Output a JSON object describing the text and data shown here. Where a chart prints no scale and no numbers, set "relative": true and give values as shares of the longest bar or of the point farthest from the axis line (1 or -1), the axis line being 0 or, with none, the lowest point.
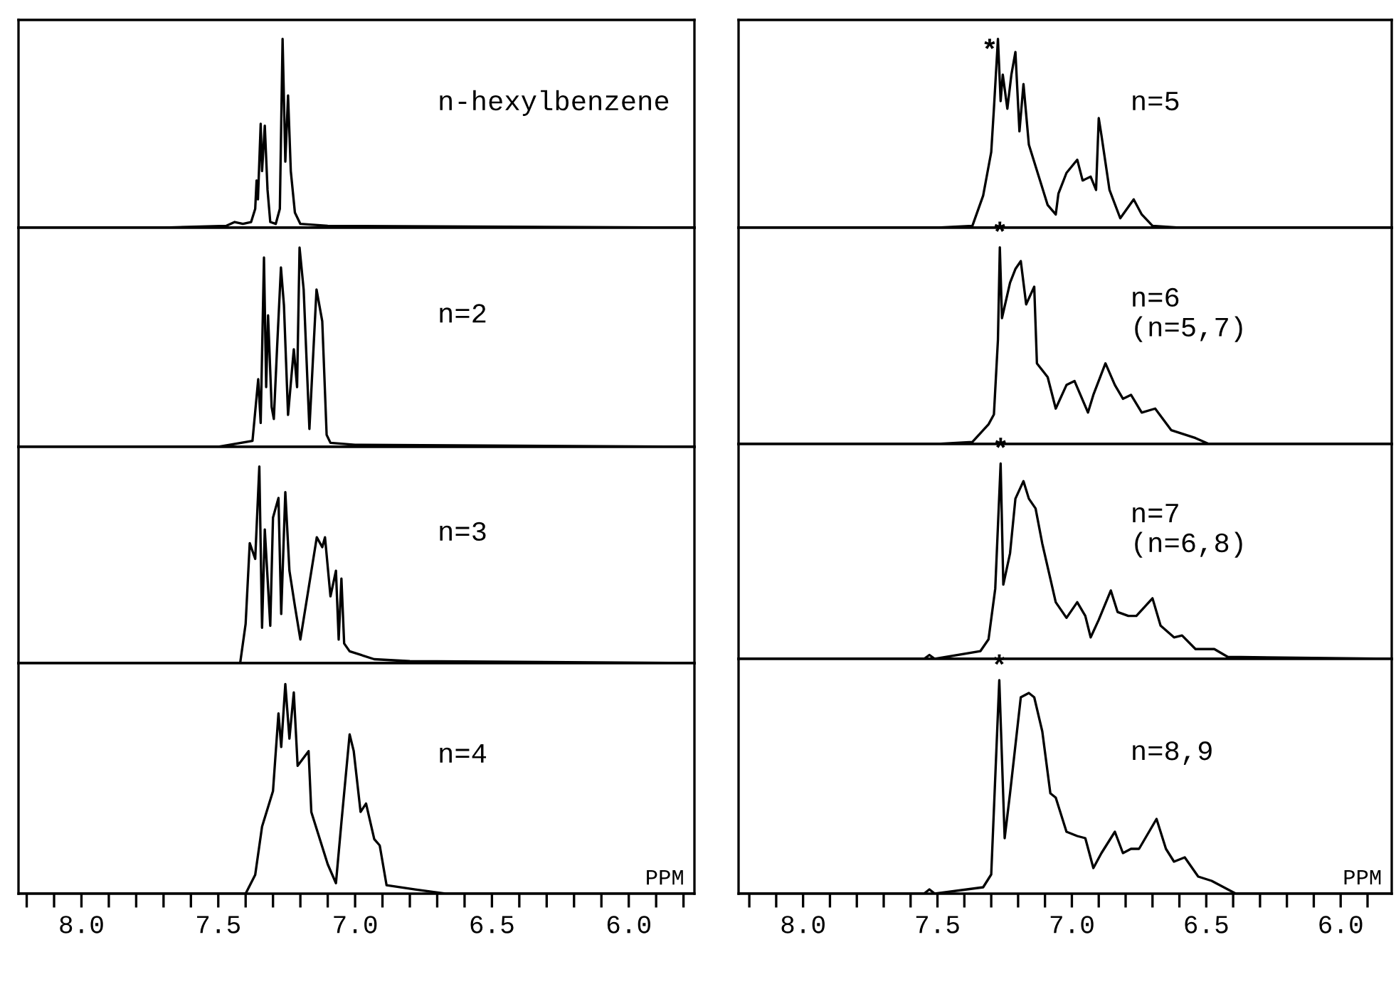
{
  "chart_data": [
    {
      "type": "line",
      "relative": true,
      "color": "#000000",
      "xlim": [
        8.23,
        5.76
      ],
      "tick_labels": false,
      "annotations": [
        "n-hexylbenzene"
      ],
      "x": [
        8.23,
        7.7,
        7.47,
        7.44,
        7.41,
        7.38,
        7.365,
        7.36,
        7.355,
        7.345,
        7.34,
        7.33,
        7.32,
        7.31,
        7.29,
        7.275,
        7.265,
        7.255,
        7.245,
        7.235,
        7.22,
        7.2,
        7.1,
        5.76
      ],
      "values": [
        0,
        0,
        0.01,
        0.03,
        0.02,
        0.03,
        0.1,
        0.25,
        0.15,
        0.55,
        0.3,
        0.54,
        0.2,
        0.03,
        0.02,
        0.1,
        1.0,
        0.35,
        0.7,
        0.3,
        0.08,
        0.02,
        0.01,
        0
      ]
    },
    {
      "type": "line",
      "relative": true,
      "color": "#000000",
      "xlim": [
        8.23,
        5.76
      ],
      "tick_labels": false,
      "annotations": [
        "n=2"
      ],
      "x": [
        8.23,
        7.5,
        7.375,
        7.354,
        7.345,
        7.333,
        7.325,
        7.318,
        7.305,
        7.297,
        7.285,
        7.271,
        7.26,
        7.245,
        7.224,
        7.212,
        7.203,
        7.188,
        7.167,
        7.141,
        7.12,
        7.104,
        7.09,
        7.0,
        5.76
      ],
      "values": [
        0,
        0,
        0.03,
        0.34,
        0.12,
        0.95,
        0.3,
        0.66,
        0.2,
        0.14,
        0.5,
        0.9,
        0.71,
        0.16,
        0.49,
        0.3,
        1.0,
        0.79,
        0.09,
        0.79,
        0.63,
        0.06,
        0.02,
        0.01,
        0
      ]
    },
    {
      "type": "line",
      "relative": true,
      "color": "#000000",
      "xlim": [
        8.23,
        5.76
      ],
      "tick_labels": false,
      "annotations": [
        "n=3"
      ],
      "x": [
        8.23,
        7.42,
        7.4,
        7.385,
        7.365,
        7.35,
        7.34,
        7.33,
        7.31,
        7.3,
        7.28,
        7.27,
        7.255,
        7.24,
        7.22,
        7.2,
        7.17,
        7.14,
        7.12,
        7.11,
        7.09,
        7.07,
        7.06,
        7.05,
        7.04,
        7.02,
        6.93,
        6.8,
        5.76
      ],
      "values": [
        0,
        0,
        0.2,
        0.61,
        0.53,
        1.0,
        0.18,
        0.68,
        0.19,
        0.74,
        0.84,
        0.25,
        0.87,
        0.47,
        0.29,
        0.12,
        0.38,
        0.64,
        0.59,
        0.64,
        0.34,
        0.47,
        0.12,
        0.43,
        0.1,
        0.06,
        0.02,
        0.01,
        0
      ]
    },
    {
      "type": "line",
      "relative": true,
      "color": "#000000",
      "xlim": [
        8.23,
        5.76
      ],
      "tick_labels": "x",
      "xlabel": "PPM",
      "annotations": [
        "n=4"
      ],
      "xticks": [
        {
          "value": 8.2,
          "label": null
        },
        {
          "value": 8.1,
          "label": null
        },
        {
          "value": 8,
          "label": "8.0"
        },
        {
          "value": 7.9,
          "label": null
        },
        {
          "value": 7.8,
          "label": null
        },
        {
          "value": 7.7,
          "label": null
        },
        {
          "value": 7.6,
          "label": null
        },
        {
          "value": 7.5,
          "label": "7.5"
        },
        {
          "value": 7.4,
          "label": null
        },
        {
          "value": 7.3,
          "label": null
        },
        {
          "value": 7.2,
          "label": null
        },
        {
          "value": 7.1,
          "label": null
        },
        {
          "value": 7,
          "label": "7.0"
        },
        {
          "value": 6.9,
          "label": null
        },
        {
          "value": 6.8,
          "label": null
        },
        {
          "value": 6.7,
          "label": null
        },
        {
          "value": 6.6,
          "label": null
        },
        {
          "value": 6.5,
          "label": "6.5"
        },
        {
          "value": 6.4,
          "label": null
        },
        {
          "value": 6.3,
          "label": null
        },
        {
          "value": 6.2,
          "label": null
        },
        {
          "value": 6.1,
          "label": null
        },
        {
          "value": 6,
          "label": "6.0"
        },
        {
          "value": 5.9,
          "label": null
        },
        {
          "value": 5.8,
          "label": null
        }
      ],
      "x": [
        8.23,
        7.4,
        7.365,
        7.34,
        7.3,
        7.28,
        7.27,
        7.255,
        7.24,
        7.224,
        7.21,
        7.17,
        7.16,
        7.1,
        7.07,
        7.05,
        7.02,
        7.005,
        6.98,
        6.96,
        6.93,
        6.91,
        6.885,
        6.78,
        6.67,
        5.76
      ],
      "values": [
        0,
        0,
        0.09,
        0.32,
        0.49,
        0.86,
        0.7,
        1.0,
        0.74,
        0.96,
        0.61,
        0.68,
        0.39,
        0.14,
        0.05,
        0.34,
        0.76,
        0.68,
        0.39,
        0.43,
        0.26,
        0.23,
        0.04,
        0.02,
        0,
        0
      ]
    },
    {
      "type": "line",
      "relative": true,
      "color": "#000000",
      "xlim": [
        8.24,
        5.81
      ],
      "tick_labels": false,
      "annotations": [
        "n=5",
        {
          "text": "*",
          "x": 7.275,
          "y": 1.0
        }
      ],
      "x": [
        8.24,
        7.5,
        7.37,
        7.33,
        7.3,
        7.29,
        7.275,
        7.265,
        7.257,
        7.24,
        7.225,
        7.21,
        7.195,
        7.18,
        7.16,
        7.125,
        7.09,
        7.06,
        7.05,
        7.02,
        6.98,
        6.96,
        6.93,
        6.91,
        6.9,
        6.89,
        6.86,
        6.82,
        6.77,
        6.74,
        6.7,
        6.6,
        5.81
      ],
      "values": [
        0,
        0,
        0.01,
        0.17,
        0.4,
        0.63,
        1.0,
        0.67,
        0.81,
        0.63,
        0.81,
        0.93,
        0.51,
        0.76,
        0.44,
        0.28,
        0.12,
        0.07,
        0.18,
        0.29,
        0.36,
        0.25,
        0.27,
        0.2,
        0.58,
        0.49,
        0.2,
        0.05,
        0.15,
        0.07,
        0.01,
        0,
        0
      ]
    },
    {
      "type": "line",
      "relative": true,
      "color": "#000000",
      "xlim": [
        8.24,
        5.81
      ],
      "tick_labels": false,
      "annotations": [
        "n=6\n(n=5,7)",
        {
          "text": "*",
          "x": 7.268,
          "y": 1.0
        }
      ],
      "x": [
        8.24,
        7.5,
        7.37,
        7.31,
        7.29,
        7.275,
        7.268,
        7.26,
        7.23,
        7.21,
        7.19,
        7.17,
        7.14,
        7.13,
        7.09,
        7.06,
        7.02,
        6.99,
        6.94,
        6.92,
        6.875,
        6.84,
        6.81,
        6.78,
        6.74,
        6.69,
        6.63,
        6.54,
        6.49,
        5.81
      ],
      "values": [
        0,
        0,
        0.01,
        0.1,
        0.15,
        0.53,
        1.0,
        0.64,
        0.82,
        0.89,
        0.93,
        0.71,
        0.8,
        0.41,
        0.34,
        0.18,
        0.3,
        0.32,
        0.16,
        0.25,
        0.41,
        0.3,
        0.23,
        0.25,
        0.16,
        0.18,
        0.07,
        0.03,
        0,
        0
      ]
    },
    {
      "type": "line",
      "relative": true,
      "color": "#000000",
      "xlim": [
        8.24,
        5.81
      ],
      "tick_labels": false,
      "annotations": [
        "n=7\n(n=6,8)",
        {
          "text": "*",
          "x": 7.265,
          "y": 1.0
        }
      ],
      "x": [
        8.24,
        7.55,
        7.53,
        7.51,
        7.34,
        7.31,
        7.285,
        7.265,
        7.255,
        7.23,
        7.21,
        7.18,
        7.16,
        7.135,
        7.11,
        7.08,
        7.06,
        7.02,
        6.98,
        6.95,
        6.93,
        6.9,
        6.855,
        6.83,
        6.79,
        6.76,
        6.7,
        6.67,
        6.62,
        6.59,
        6.54,
        6.47,
        6.42,
        5.81
      ],
      "values": [
        0,
        0,
        0.02,
        0,
        0.04,
        0.1,
        0.36,
        1.0,
        0.38,
        0.54,
        0.82,
        0.91,
        0.82,
        0.77,
        0.59,
        0.41,
        0.29,
        0.21,
        0.29,
        0.22,
        0.11,
        0.2,
        0.35,
        0.24,
        0.22,
        0.22,
        0.31,
        0.17,
        0.11,
        0.12,
        0.05,
        0.05,
        0.01,
        0
      ]
    },
    {
      "type": "line",
      "relative": true,
      "color": "#000000",
      "xlim": [
        8.24,
        5.81
      ],
      "tick_labels": "x",
      "xlabel": "PPM",
      "annotations": [
        "n=8,9",
        {
          "text": "*",
          "x": 7.27,
          "y": 1.0
        }
      ],
      "xticks": [
        {
          "value": 8.2,
          "label": null
        },
        {
          "value": 8.1,
          "label": null
        },
        {
          "value": 8,
          "label": "8.0"
        },
        {
          "value": 7.9,
          "label": null
        },
        {
          "value": 7.8,
          "label": null
        },
        {
          "value": 7.7,
          "label": null
        },
        {
          "value": 7.6,
          "label": null
        },
        {
          "value": 7.5,
          "label": "7.5"
        },
        {
          "value": 7.4,
          "label": null
        },
        {
          "value": 7.3,
          "label": null
        },
        {
          "value": 7.2,
          "label": null
        },
        {
          "value": 7.1,
          "label": null
        },
        {
          "value": 7,
          "label": "7.0"
        },
        {
          "value": 6.9,
          "label": null
        },
        {
          "value": 6.8,
          "label": null
        },
        {
          "value": 6.7,
          "label": null
        },
        {
          "value": 6.6,
          "label": null
        },
        {
          "value": 6.5,
          "label": "6.5"
        },
        {
          "value": 6.4,
          "label": null
        },
        {
          "value": 6.3,
          "label": null
        },
        {
          "value": 6.2,
          "label": null
        },
        {
          "value": 6.1,
          "label": null
        },
        {
          "value": 6,
          "label": "6.0"
        },
        {
          "value": 5.9,
          "label": null
        }
      ],
      "x": [
        8.24,
        7.55,
        7.53,
        7.51,
        7.33,
        7.3,
        7.27,
        7.25,
        7.23,
        7.19,
        7.16,
        7.14,
        7.11,
        7.08,
        7.06,
        7.02,
        6.98,
        6.95,
        6.92,
        6.89,
        6.84,
        6.81,
        6.78,
        6.75,
        6.685,
        6.65,
        6.62,
        6.58,
        6.53,
        6.48,
        6.39,
        5.81
      ],
      "values": [
        0,
        0,
        0.02,
        0,
        0.03,
        0.09,
        1.0,
        0.26,
        0.47,
        0.92,
        0.94,
        0.92,
        0.76,
        0.47,
        0.45,
        0.29,
        0.27,
        0.26,
        0.12,
        0.19,
        0.29,
        0.19,
        0.21,
        0.21,
        0.35,
        0.21,
        0.15,
        0.17,
        0.08,
        0.06,
        0,
        0
      ]
    }
  ]
}
